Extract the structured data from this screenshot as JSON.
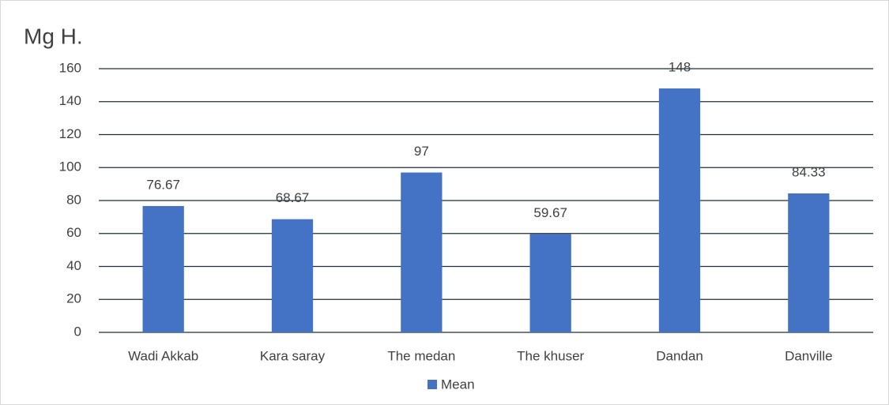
{
  "chart_data": {
    "type": "bar",
    "title": "Mg H.",
    "categories": [
      "Wadi Akkab",
      "Kara saray",
      "The medan",
      "The khuser",
      "Dandan",
      "Danville"
    ],
    "series": [
      {
        "name": "Mean",
        "color": "#4472c4",
        "values": [
          76.67,
          68.67,
          97,
          59.67,
          148,
          84.33
        ]
      }
    ],
    "ylim": [
      0,
      160
    ],
    "yticks": [
      0,
      20,
      40,
      60,
      80,
      100,
      120,
      140,
      160
    ],
    "grid": true,
    "legend": "bottom",
    "data_labels": true
  }
}
